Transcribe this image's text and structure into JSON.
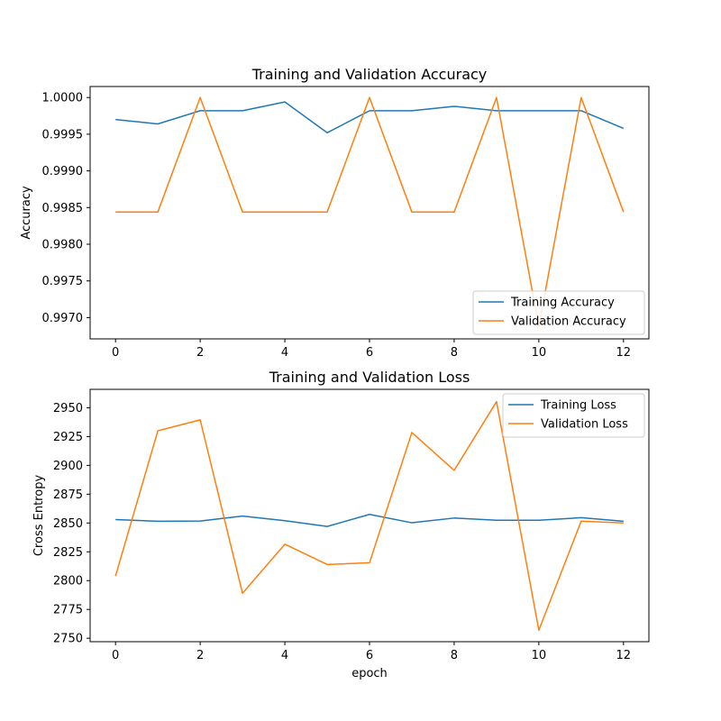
{
  "chart_data": [
    {
      "type": "line",
      "title": "Training and Validation Accuracy",
      "xlabel": "",
      "ylabel": "Accuracy",
      "xlim": [
        -0.6,
        12.6
      ],
      "ylim": [
        0.99671,
        1.00015
      ],
      "x_ticks": [
        0,
        2,
        4,
        6,
        8,
        10,
        12
      ],
      "y_ticks": [
        0.997,
        0.9975,
        0.998,
        0.9985,
        0.999,
        0.9995,
        1.0
      ],
      "y_tick_labels": [
        "0.9970",
        "0.9975",
        "0.9980",
        "0.9985",
        "0.9990",
        "0.9995",
        "1.0000"
      ],
      "legend": "bottom-right",
      "grid": false,
      "x": [
        0,
        1,
        2,
        3,
        4,
        5,
        6,
        7,
        8,
        9,
        10,
        11,
        12
      ],
      "series": [
        {
          "name": "Training Accuracy",
          "color": "#1f77b4",
          "values": [
            0.9997,
            0.99964,
            0.99982,
            0.99982,
            0.99994,
            0.99952,
            0.99982,
            0.99982,
            0.99988,
            0.99982,
            0.99982,
            0.99982,
            0.99958
          ]
        },
        {
          "name": "Validation Accuracy",
          "color": "#ff7f0e",
          "values": [
            0.99844,
            0.99844,
            1.0,
            0.99844,
            0.99844,
            0.99844,
            1.0,
            0.99844,
            0.99844,
            1.0,
            0.99688,
            1.0,
            0.99844
          ]
        }
      ]
    },
    {
      "type": "line",
      "title": "Training and Validation Loss",
      "xlabel": "epoch",
      "ylabel": "Cross Entropy",
      "xlim": [
        -0.6,
        12.6
      ],
      "ylim": [
        2747,
        2966
      ],
      "x_ticks": [
        0,
        2,
        4,
        6,
        8,
        10,
        12
      ],
      "y_ticks": [
        2750,
        2775,
        2800,
        2825,
        2850,
        2875,
        2900,
        2925,
        2950
      ],
      "y_tick_labels": [
        "2750",
        "2775",
        "2800",
        "2825",
        "2850",
        "2875",
        "2900",
        "2925",
        "2950"
      ],
      "legend": "top-right",
      "grid": false,
      "x": [
        0,
        1,
        2,
        3,
        4,
        5,
        6,
        7,
        8,
        9,
        10,
        11,
        12
      ],
      "series": [
        {
          "name": "Training Loss",
          "color": "#1f77b4",
          "values": [
            2853,
            2851.5,
            2851.7,
            2856,
            2852,
            2847,
            2857.5,
            2850.2,
            2854.3,
            2852.4,
            2852.4,
            2854.6,
            2851.5
          ]
        },
        {
          "name": "Validation Loss",
          "color": "#ff7f0e",
          "values": [
            2804,
            2930,
            2939.5,
            2789,
            2831.6,
            2814,
            2815.5,
            2928.5,
            2895.7,
            2955.3,
            2757,
            2851.6,
            2850
          ]
        }
      ]
    }
  ]
}
